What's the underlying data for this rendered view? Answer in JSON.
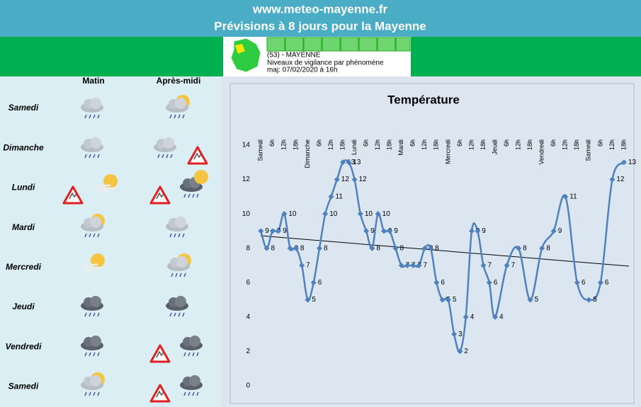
{
  "header": {
    "site": "www.meteo-mayenne.fr",
    "title": "Prévisions à 8 jours pour la Mayenne"
  },
  "vigilance": {
    "dept": "(53) - MAYENNE",
    "subtitle": "Niveaux de vigilance par phénomène",
    "updated": "maj: 07/02/2020 à 16h"
  },
  "forecast": {
    "columns": [
      "Matin",
      "Après-midi"
    ],
    "days": [
      "Samedi",
      "Dimanche",
      "Lundi",
      "Mardi",
      "Mercredi",
      "Jeudi",
      "Vendredi",
      "Samedi"
    ]
  },
  "chart_data": {
    "type": "line",
    "title": "Température",
    "color": "#4f81bd",
    "x": [
      0,
      3,
      6,
      9,
      12,
      15,
      18,
      21,
      24,
      27,
      30,
      33,
      36,
      39,
      42,
      45,
      48,
      51,
      54,
      57,
      60,
      63,
      66,
      69,
      72,
      75,
      78,
      81,
      84,
      87,
      90,
      93,
      96,
      99,
      102,
      105,
      108,
      111,
      114,
      117,
      120,
      126,
      132,
      138,
      144,
      150,
      156,
      162,
      168,
      174,
      180,
      186
    ],
    "values": [
      9,
      8,
      9,
      9,
      10,
      8,
      8,
      7,
      5,
      6,
      8,
      10,
      11,
      12,
      13,
      13,
      12,
      10,
      9,
      8,
      10,
      9,
      9,
      8,
      7,
      7,
      7,
      7,
      8,
      8,
      6,
      5,
      5,
      3,
      2,
      4,
      9,
      9,
      7,
      6,
      4,
      7,
      8,
      5,
      8,
      9,
      11,
      6,
      5,
      6,
      12,
      13
    ],
    "xlim": [
      -3,
      190
    ],
    "xticks": [
      {
        "value": 0,
        "label": "Samedi"
      },
      {
        "value": 6,
        "label": "6h"
      },
      {
        "value": 12,
        "label": "12h"
      },
      {
        "value": 18,
        "label": "18h"
      },
      {
        "value": 24,
        "label": "Dimanche"
      },
      {
        "value": 30,
        "label": "6h"
      },
      {
        "value": 36,
        "label": "12h"
      },
      {
        "value": 42,
        "label": "18h"
      },
      {
        "value": 48,
        "label": "Lundi"
      },
      {
        "value": 54,
        "label": "6h"
      },
      {
        "value": 60,
        "label": "12h"
      },
      {
        "value": 66,
        "label": "18h"
      },
      {
        "value": 72,
        "label": "Mardi"
      },
      {
        "value": 78,
        "label": "6h"
      },
      {
        "value": 84,
        "label": "12h"
      },
      {
        "value": 90,
        "label": "18h"
      },
      {
        "value": 96,
        "label": "Mercredi"
      },
      {
        "value": 102,
        "label": "6h"
      },
      {
        "value": 108,
        "label": "12h"
      },
      {
        "value": 114,
        "label": "18h"
      },
      {
        "value": 120,
        "label": "Jeudi"
      },
      {
        "value": 126,
        "label": "6h"
      },
      {
        "value": 132,
        "label": "12h"
      },
      {
        "value": 138,
        "label": "18h"
      },
      {
        "value": 144,
        "label": "Vendredi"
      },
      {
        "value": 150,
        "label": "6h"
      },
      {
        "value": 156,
        "label": "12h"
      },
      {
        "value": 162,
        "label": "18h"
      },
      {
        "value": 168,
        "label": "Samedi"
      },
      {
        "value": 174,
        "label": "6h"
      },
      {
        "value": 180,
        "label": "12h"
      },
      {
        "value": 186,
        "label": "18h"
      }
    ],
    "ylim": [
      0,
      14
    ],
    "yticks": [
      0,
      2,
      4,
      6,
      8,
      10,
      12,
      14
    ]
  }
}
